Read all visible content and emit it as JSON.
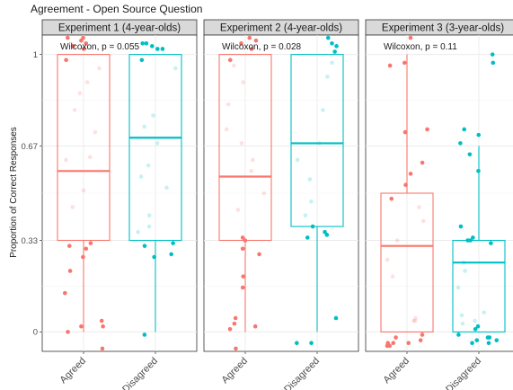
{
  "chart_data": {
    "type": "boxplot",
    "title": "Agreement - Open Source Question",
    "ylabel": "Proportion of Correct Responses",
    "xlabel": "",
    "ylim": [
      -0.07,
      1.07
    ],
    "yticks": [
      0,
      0.33,
      0.67,
      1
    ],
    "ytick_labels": [
      "0",
      "0.33",
      "0.67",
      "1"
    ],
    "grid": true,
    "legend": "none",
    "categories": [
      "Agreed",
      "Disagreed"
    ],
    "colors": {
      "Agreed": "#f8766d",
      "Disagreed": "#00bfc4"
    },
    "panels": [
      {
        "label": "Experiment 1 (4-year-olds)",
        "annotation": "Wilcoxon, p = 0.055",
        "boxes": [
          {
            "category": "Agreed",
            "min": 0,
            "q1": 0.33,
            "median": 0.58,
            "q3": 1,
            "max": 1
          },
          {
            "category": "Disagreed",
            "min": 0,
            "q1": 0.33,
            "median": 0.7,
            "q3": 1,
            "max": 1
          }
        ],
        "points": [
          {
            "category": "Agreed",
            "y": [
              1.06,
              1.04,
              1.06,
              1.03,
              1.05,
              1.02,
              0.98,
              0.95,
              0.9,
              0.86,
              0.8,
              0.72,
              0.63,
              0.62,
              0.51,
              0.45,
              0.32,
              0.31,
              0.3,
              0.27,
              0.22,
              0.14,
              0.04,
              0.02,
              0.0,
              0.02,
              -0.06
            ]
          },
          {
            "category": "Disagreed",
            "y": [
              1.04,
              1.03,
              1.02,
              1.02,
              1.04,
              0.98,
              0.95,
              0.78,
              0.74,
              0.68,
              0.6,
              0.56,
              0.52,
              0.42,
              0.38,
              0.36,
              0.32,
              0.31,
              0.28,
              0.27,
              -0.01
            ]
          }
        ]
      },
      {
        "label": "Experiment 2 (4-year-olds)",
        "annotation": "Wilcoxon, p = 0.028",
        "boxes": [
          {
            "category": "Agreed",
            "min": 0,
            "q1": 0.33,
            "median": 0.56,
            "q3": 1,
            "max": 1
          },
          {
            "category": "Disagreed",
            "min": 0,
            "q1": 0.38,
            "median": 0.68,
            "q3": 1,
            "max": 1
          }
        ],
        "points": [
          {
            "category": "Agreed",
            "y": [
              1.06,
              1.04,
              1.05,
              1.02,
              0.98,
              0.96,
              0.9,
              0.82,
              0.73,
              0.68,
              0.62,
              0.58,
              0.5,
              0.44,
              0.34,
              0.33,
              0.3,
              0.28,
              0.2,
              0.16,
              0.05,
              0.03,
              0.02,
              0.01,
              -0.06
            ]
          },
          {
            "category": "Disagreed",
            "y": [
              1.06,
              1.04,
              1.03,
              1.01,
              0.97,
              0.92,
              0.8,
              0.68,
              0.62,
              0.55,
              0.47,
              0.42,
              0.38,
              0.36,
              0.35,
              0.34,
              0.05,
              -0.04,
              -0.04
            ]
          }
        ]
      },
      {
        "label": "Experiment 3 (3-year-olds)",
        "annotation": "Wilcoxon, p = 0.11",
        "boxes": [
          {
            "category": "Agreed",
            "min": 0,
            "q1": 0,
            "median": 0.31,
            "q3": 0.5,
            "max": 1
          },
          {
            "category": "Disagreed",
            "min": 0,
            "q1": 0,
            "median": 0.25,
            "q3": 0.33,
            "max": 0.67
          }
        ],
        "points": [
          {
            "category": "Agreed",
            "y": [
              1.06,
              0.97,
              0.96,
              0.73,
              0.72,
              0.61,
              0.57,
              0.53,
              0.48,
              0.45,
              0.4,
              0.33,
              0.26,
              0.2,
              0.05,
              0.04,
              0.04,
              -0.01,
              -0.02,
              -0.03,
              -0.04,
              -0.04,
              -0.05,
              -0.05,
              -0.04
            ]
          },
          {
            "category": "Disagreed",
            "y": [
              1.0,
              0.97,
              0.73,
              0.71,
              0.68,
              0.64,
              0.58,
              0.38,
              0.34,
              0.33,
              0.33,
              0.32,
              0.25,
              0.22,
              0.16,
              0.07,
              0.06,
              0.04,
              0.03,
              0.02,
              0.01,
              -0.01,
              -0.02,
              -0.03,
              -0.04,
              -0.04,
              -0.03,
              -0.02
            ]
          }
        ]
      }
    ]
  }
}
